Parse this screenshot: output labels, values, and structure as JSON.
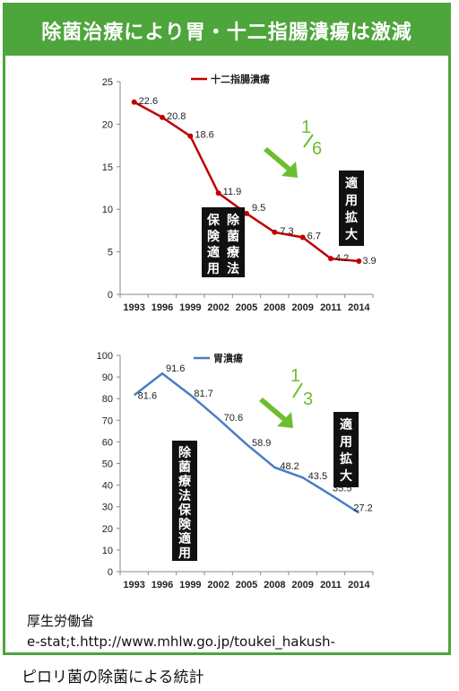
{
  "banner": {
    "title": "除菌治療により胃・十二指腸潰瘍は激減"
  },
  "colors": {
    "accent": "#4ea53c",
    "duodenal": "#c00000",
    "gastric": "#4a7ec4",
    "arrow": "#6cbe2f"
  },
  "chart_data": [
    {
      "type": "line",
      "categories": [
        "1993",
        "1996",
        "1999",
        "2002",
        "2005",
        "2008",
        "2009",
        "2011",
        "2014"
      ],
      "series": [
        {
          "name": "十二指腸潰瘍",
          "values": [
            22.6,
            20.8,
            18.6,
            11.9,
            9.5,
            7.3,
            6.7,
            4.2,
            3.9
          ]
        }
      ],
      "ylim": [
        0,
        25
      ],
      "yticks": [
        "0",
        "5",
        "10",
        "15",
        "20",
        "25"
      ],
      "data_labels": [
        "22.6",
        "20.8",
        "18.6",
        "11.9",
        "9.5",
        "7.3",
        "6.7",
        "4.2",
        "3.9"
      ],
      "annotations": {
        "fraction_num": "1",
        "fraction_den": "6",
        "note1_col1": "保険適用",
        "note1_col2": "除菌療法",
        "note2": "適用拡大"
      }
    },
    {
      "type": "line",
      "categories": [
        "1993",
        "1996",
        "1999",
        "2002",
        "2005",
        "2008",
        "2009",
        "2011",
        "2014"
      ],
      "series": [
        {
          "name": "胃潰瘍",
          "values": [
            81.6,
            91.6,
            81.7,
            70.6,
            58.9,
            48.2,
            43.5,
            35.5,
            27.2
          ]
        }
      ],
      "ylim": [
        0,
        100
      ],
      "yticks": [
        "0",
        "10",
        "20",
        "30",
        "40",
        "50",
        "60",
        "70",
        "80",
        "90",
        "100"
      ],
      "data_labels": [
        "81.6",
        "91.6",
        "81.7",
        "70.6",
        "58.9",
        "48.2",
        "43.5",
        "35.5",
        "27.2"
      ],
      "annotations": {
        "fraction_num": "1",
        "fraction_den": "3",
        "note1": "除菌療法保険適用",
        "note2": "適用拡大"
      }
    }
  ],
  "source": {
    "line1": "厚生労働省",
    "line2": "e-stat;t.http://www.mhlw.go.jp/toukei_hakush-"
  },
  "caption": "ピロリ菌の除菌による統計"
}
